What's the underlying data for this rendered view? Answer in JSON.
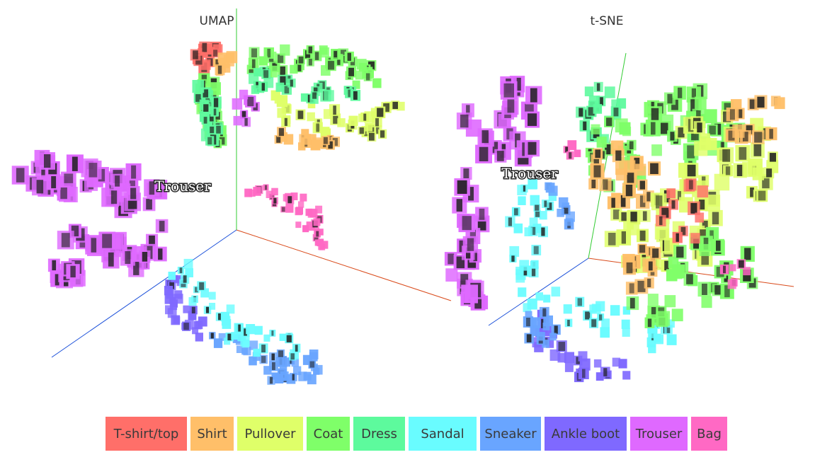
{
  "chart_data": [
    {
      "type": "scatter",
      "title": "UMAP",
      "dimensions": 3,
      "point_style": "fashion-mnist image thumbnails tinted by class",
      "axes_visible": [
        "x",
        "y",
        "z"
      ],
      "cluster_labels": [
        {
          "text": "Trouser",
          "series": "Trouser"
        }
      ],
      "series": [
        {
          "name": "T-shirt/top",
          "color": "#ff6f69"
        },
        {
          "name": "Shirt",
          "color": "#ffbf69"
        },
        {
          "name": "Pullover",
          "color": "#dfff69"
        },
        {
          "name": "Coat",
          "color": "#7fff69"
        },
        {
          "name": "Dress",
          "color": "#5dfa9d"
        },
        {
          "name": "Sandal",
          "color": "#69fcff"
        },
        {
          "name": "Sneaker",
          "color": "#69a5ff"
        },
        {
          "name": "Ankle boot",
          "color": "#7f69ff"
        },
        {
          "name": "Trouser",
          "color": "#df69ff"
        },
        {
          "name": "Bag",
          "color": "#ff69c4"
        }
      ]
    },
    {
      "type": "scatter",
      "title": "t-SNE",
      "dimensions": 3,
      "point_style": "fashion-mnist image thumbnails tinted by class",
      "axes_visible": [
        "x",
        "y",
        "z"
      ],
      "cluster_labels": [
        {
          "text": "Trouser",
          "series": "Trouser"
        }
      ],
      "series": [
        {
          "name": "T-shirt/top",
          "color": "#ff6f69"
        },
        {
          "name": "Shirt",
          "color": "#ffbf69"
        },
        {
          "name": "Pullover",
          "color": "#dfff69"
        },
        {
          "name": "Coat",
          "color": "#7fff69"
        },
        {
          "name": "Dress",
          "color": "#5dfa9d"
        },
        {
          "name": "Sandal",
          "color": "#69fcff"
        },
        {
          "name": "Sneaker",
          "color": "#69a5ff"
        },
        {
          "name": "Ankle boot",
          "color": "#7f69ff"
        },
        {
          "name": "Trouser",
          "color": "#df69ff"
        },
        {
          "name": "Bag",
          "color": "#ff69c4"
        }
      ]
    }
  ],
  "legend": {
    "items": [
      {
        "label": "T-shirt/top",
        "color": "#ff6f69"
      },
      {
        "label": "Shirt",
        "color": "#ffbf69"
      },
      {
        "label": "Pullover",
        "color": "#dfff69"
      },
      {
        "label": "Coat",
        "color": "#7fff69"
      },
      {
        "label": "Dress",
        "color": "#5dfa9d"
      },
      {
        "label": "Sandal",
        "color": "#69fcff"
      },
      {
        "label": "Sneaker",
        "color": "#69a5ff"
      },
      {
        "label": "Ankle boot",
        "color": "#7f69ff"
      },
      {
        "label": "Trouser",
        "color": "#df69ff"
      },
      {
        "label": "Bag",
        "color": "#ff69c4"
      }
    ]
  },
  "axis_colors": {
    "x": "#d94a1a",
    "y": "#33cc33",
    "z": "#1a4fd9"
  }
}
